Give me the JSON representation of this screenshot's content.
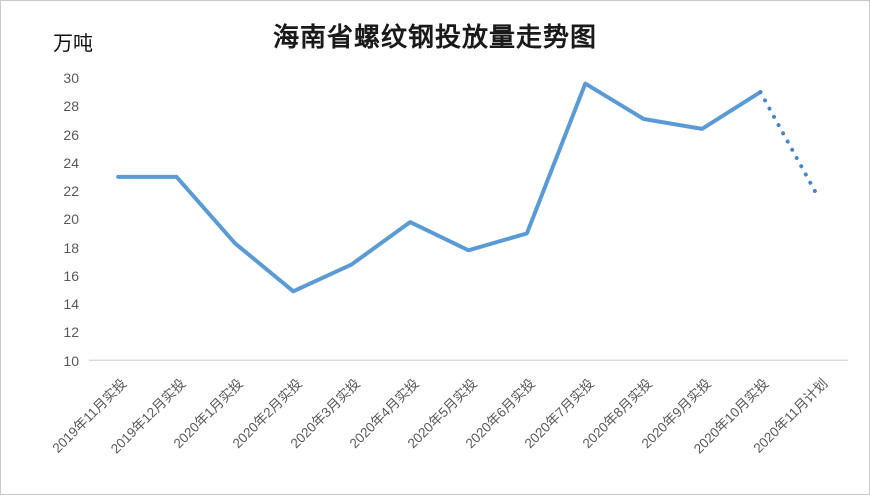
{
  "chart_data": {
    "type": "line",
    "title": "海南省螺纹钢投放量走势图",
    "ylabel": "万吨",
    "xlabel": "",
    "categories": [
      "2019年11月实投",
      "2019年12月实投",
      "2020年1月实投",
      "2020年2月实投",
      "2020年3月实投",
      "2020年4月实投",
      "2020年5月实投",
      "2020年6月实投",
      "2020年7月实投",
      "2020年8月实投",
      "2020年9月实投",
      "2020年10月实投",
      "2020年11月计划"
    ],
    "values": [
      23,
      23,
      18.3,
      14.9,
      16.8,
      19.8,
      17.8,
      19,
      29.6,
      27.1,
      26.4,
      29,
      21.5
    ],
    "ylim": [
      10,
      30
    ],
    "ytick_step": 2,
    "grid": false,
    "legend_position": "none",
    "line_style": {
      "solid_color": "#5B9BD5",
      "dotted_color": "#4A86C8",
      "dotted_segment_start_index": 11,
      "stroke_width": 4
    },
    "colors": {
      "axis_line": "#D9D9D9",
      "tick_text": "#595959",
      "title_text": "#1A1A1A",
      "frame_border": "#C9C9C9"
    }
  }
}
